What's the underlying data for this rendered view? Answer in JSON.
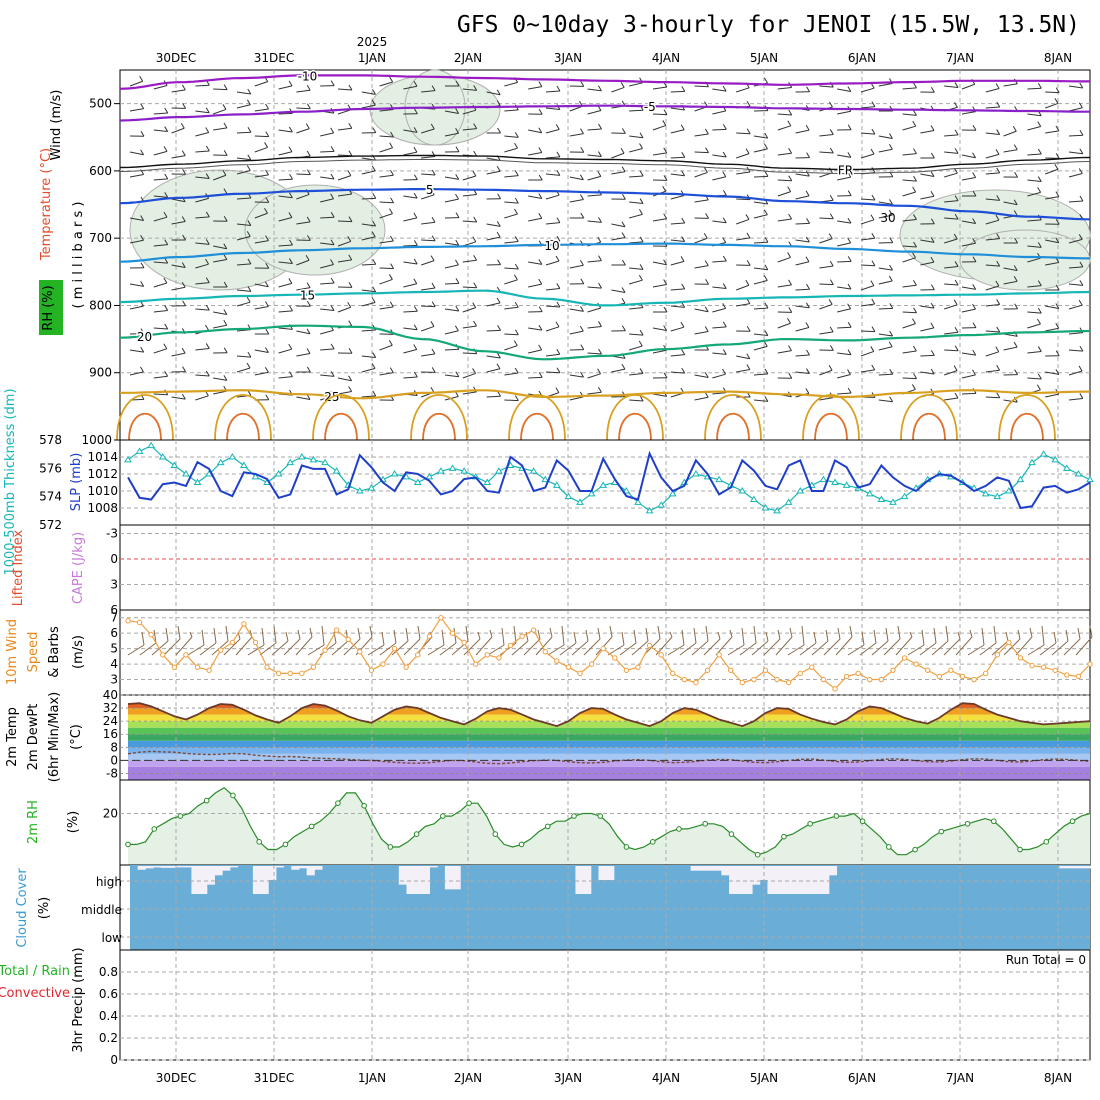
{
  "chart_data": {
    "type": "meteogram",
    "title": "GFS 0~10day 3-hourly for JENOI (15.5W, 13.5N)",
    "year_label": "2025",
    "dates": [
      "30DEC",
      "31DEC",
      "1JAN",
      "2JAN",
      "3JAN",
      "4JAN",
      "5JAN",
      "6JAN",
      "7JAN",
      "8JAN"
    ],
    "panels": [
      {
        "id": "upper_air",
        "labels": [
          "Wind (m/s)",
          "Temperature (°C)",
          "RH (%)",
          "( m i l l i b a r s )"
        ],
        "ylim": [
          1000,
          450
        ],
        "yticks": [
          500,
          600,
          700,
          800,
          900,
          1000
        ],
        "contour_labels": [
          "-10",
          "-5",
          "FR",
          "5",
          "10",
          "15",
          "20",
          "25",
          "30"
        ],
        "isotherms": [
          {
            "label": "-10",
            "color": "#9a1bc4",
            "pressures": [
              478,
              468,
              462,
              458,
              458,
              460,
              462,
              464,
              466,
              468,
              470,
              472,
              470,
              468,
              466,
              466,
              467
            ]
          },
          {
            "label": "-5",
            "color": "#8a20c8",
            "pressures": [
              525,
              520,
              516,
              512,
              508,
              506,
              505,
              504,
              503,
              504,
              505,
              507,
              508,
              509,
              510,
              511,
              512
            ]
          },
          {
            "label": "FR",
            "color": "#111111",
            "pressures": [
              595,
              590,
              585,
              580,
              578,
              577,
              578,
              582,
              583,
              585,
              590,
              596,
              598,
              596,
              590,
              584,
              580
            ]
          },
          {
            "label": "5",
            "color": "#1e4fd8",
            "pressures": [
              648,
              640,
              634,
              630,
              628,
              627,
              628,
              630,
              632,
              634,
              638,
              645,
              648,
              652,
              660,
              668,
              672
            ]
          },
          {
            "label": "10",
            "color": "#1e8fd8",
            "pressures": [
              735,
              728,
              722,
              718,
              715,
              713,
              712,
              710,
              709,
              708,
              710,
              712,
              716,
              720,
              724,
              728,
              730
            ]
          },
          {
            "label": "15",
            "color": "#17b6b6",
            "pressures": [
              795,
              790,
              786,
              784,
              782,
              780,
              778,
              790,
              800,
              796,
              790,
              788,
              786,
              785,
              784,
              782,
              780
            ]
          },
          {
            "label": "20",
            "color": "#14a878",
            "pressures": [
              848,
              840,
              835,
              830,
              832,
              850,
              868,
              880,
              875,
              865,
              858,
              850,
              852,
              848,
              844,
              840,
              838
            ]
          },
          {
            "label": "25",
            "color": "#d8a020",
            "pressures": [
              930,
              928,
              926,
              932,
              938,
              930,
              926,
              936,
              934,
              930,
              928,
              932,
              936,
              930,
              926,
              930,
              928
            ]
          }
        ]
      },
      {
        "id": "thickness_slp",
        "labels": [
          "1000-500mb Thickness (dm)",
          "SLP (mb)"
        ],
        "thickness_ylim": [
          572,
          578
        ],
        "thickness_ticks": [
          572,
          574,
          576,
          578
        ],
        "slp_ylim": [
          1006,
          1016
        ],
        "slp_ticks": [
          1008,
          1010,
          1012,
          1014
        ],
        "thickness": [
          576.6,
          577.2,
          577.6,
          576.8,
          576.2,
          575.6,
          575.0,
          575.6,
          576.4,
          576.8,
          576.2,
          575.4,
          575.0,
          575.6,
          576.4,
          576.8,
          576.6,
          576.4,
          575.8,
          574.8,
          574.4,
          574.6,
          575.2,
          575.6,
          575.4,
          575.0,
          575.4,
          575.8,
          576.0,
          575.8,
          575.4,
          575.0,
          575.8,
          576.2,
          576.0,
          575.8,
          575.2,
          574.8,
          574.0,
          573.6,
          574.2,
          574.8,
          575.0,
          574.4,
          573.6,
          573.0,
          573.4,
          574.2,
          575.0,
          575.6,
          575.4,
          575.2,
          574.8,
          574.4,
          573.8,
          573.2,
          573.0,
          573.6,
          574.4,
          574.8,
          575.2,
          575.0,
          574.8,
          574.6,
          574.2,
          573.8,
          573.6,
          574.0,
          574.6,
          575.2,
          575.6,
          575.4,
          575.0,
          574.6,
          574.2,
          574.0,
          574.4,
          575.2,
          576.4,
          577.0,
          576.6,
          576.0,
          575.6,
          575.2
        ],
        "slp": [
          1011.6,
          1009.2,
          1009.0,
          1010.8,
          1011.0,
          1010.6,
          1013.4,
          1012.6,
          1010.0,
          1009.4,
          1012.2,
          1012.0,
          1011.4,
          1009.2,
          1009.6,
          1013.0,
          1012.6,
          1012.6,
          1009.6,
          1010.2,
          1014.2,
          1012.8,
          1011.0,
          1010.0,
          1012.2,
          1012.0,
          1011.2,
          1009.6,
          1010.0,
          1011.4,
          1011.6,
          1010.0,
          1009.8,
          1014.0,
          1013.0,
          1010.0,
          1010.4,
          1013.6,
          1012.4,
          1010.0,
          1010.0,
          1013.8,
          1011.4,
          1009.4,
          1009.0,
          1014.4,
          1011.6,
          1010.0,
          1010.6,
          1013.6,
          1012.0,
          1009.6,
          1010.4,
          1013.6,
          1012.4,
          1010.6,
          1010.2,
          1013.0,
          1013.6,
          1010.0,
          1010.0,
          1013.6,
          1012.8,
          1010.4,
          1010.8,
          1013.0,
          1011.6,
          1010.6,
          1010.0,
          1011.2,
          1012.0,
          1011.8,
          1011.0,
          1010.0,
          1010.6,
          1011.6,
          1011.2,
          1008.0,
          1008.2,
          1010.4,
          1010.6,
          1009.8,
          1010.2,
          1011.0
        ]
      },
      {
        "id": "lifted_cape",
        "labels": [
          "Lifted Index",
          "CAPE (J/kg)"
        ],
        "ylim": [
          6,
          -4
        ],
        "yticks": [
          -3,
          0,
          3,
          6
        ]
      },
      {
        "id": "wind10m",
        "labels": [
          "10m Wind",
          "Speed",
          "& Barbs",
          "(m/s)"
        ],
        "ylim": [
          2,
          7.5
        ],
        "yticks": [
          3,
          4,
          5,
          6,
          7
        ],
        "speed": [
          6.8,
          6.7,
          5.9,
          4.6,
          3.8,
          4.6,
          3.8,
          3.6,
          4.9,
          5.4,
          6.6,
          5.4,
          3.8,
          3.4,
          3.4,
          3.4,
          3.8,
          4.9,
          6.2,
          5.6,
          4.8,
          3.6,
          4.0,
          5.0,
          3.8,
          4.6,
          5.8,
          7.0,
          6.0,
          5.4,
          4.0,
          4.6,
          4.4,
          5.2,
          5.8,
          6.2,
          4.8,
          4.2,
          3.8,
          3.4,
          4.0,
          5.0,
          4.4,
          3.6,
          3.8,
          5.2,
          4.6,
          3.4,
          3.0,
          2.8,
          3.6,
          4.6,
          3.6,
          2.8,
          3.0,
          3.6,
          3.0,
          2.8,
          3.4,
          3.8,
          3.0,
          2.4,
          3.2,
          3.4,
          3.0,
          3.0,
          3.6,
          4.4,
          4.0,
          3.6,
          3.2,
          3.6,
          3.2,
          3.0,
          3.4,
          4.6,
          5.4,
          4.4,
          3.9,
          3.8,
          3.6,
          3.3,
          3.2,
          4.0
        ]
      },
      {
        "id": "temperature",
        "labels": [
          "2m Temp",
          "2m DewPt",
          "(6hr Min/Max)",
          "(°C)"
        ],
        "ylim": [
          -12,
          40
        ],
        "yticks": [
          -8,
          0,
          8,
          16,
          24,
          32,
          40
        ],
        "temp": [
          34.5,
          35.0,
          33.0,
          30.0,
          27.0,
          25.0,
          28.0,
          32.0,
          34.5,
          34.0,
          31.0,
          27.5,
          25.0,
          23.0,
          27.0,
          32.0,
          34.5,
          33.5,
          30.5,
          27.0,
          24.5,
          23.0,
          27.0,
          31.0,
          33.0,
          32.0,
          29.0,
          26.0,
          24.0,
          22.0,
          25.5,
          30.0,
          32.0,
          31.0,
          28.0,
          25.0,
          23.0,
          21.0,
          24.0,
          29.0,
          32.0,
          31.5,
          28.0,
          25.0,
          23.0,
          21.0,
          24.0,
          29.0,
          32.0,
          31.0,
          28.0,
          25.0,
          23.0,
          21.0,
          24.0,
          29.0,
          32.0,
          31.5,
          28.0,
          25.5,
          23.5,
          22.0,
          25.0,
          30.0,
          33.0,
          32.0,
          29.0,
          26.0,
          24.0,
          22.5,
          26.0,
          31.0,
          35.0,
          34.5,
          31.0,
          28.0,
          26.0,
          24.0,
          23.0,
          22.0,
          22.5,
          23.0,
          23.5,
          24.0
        ],
        "dewpt": [
          4.0,
          5.0,
          5.5,
          5.2,
          5.0,
          4.2,
          3.8,
          3.6,
          3.8,
          4.2,
          4.0,
          3.2,
          2.6,
          2.2,
          2.4,
          2.0,
          1.4,
          1.2,
          1.0,
          0.6,
          0.2,
          0.0,
          -0.6,
          -1.2,
          -1.6,
          -1.8,
          -1.4,
          -0.6,
          0.0,
          -0.2,
          -1.0,
          -1.8,
          -2.0,
          -1.6,
          -0.8,
          -0.2,
          0.2,
          0.0,
          -0.8,
          -1.4,
          -1.6,
          -1.2,
          -0.4,
          0.2,
          0.4,
          0.0,
          -0.8,
          -1.4,
          -1.2,
          -0.6,
          0.2,
          0.6,
          0.4,
          -0.4,
          -1.2,
          -1.4,
          -0.8,
          0.0,
          0.6,
          0.8,
          0.2,
          -0.6,
          -1.2,
          -1.0,
          -0.2,
          0.6,
          1.0,
          0.6,
          -0.2,
          -0.8,
          -1.0,
          -0.4,
          0.4,
          1.0,
          0.8,
          0.0,
          -0.8,
          -1.0,
          -0.4,
          0.4,
          0.8,
          0.6,
          0.0,
          -0.6
        ]
      },
      {
        "id": "rh2m",
        "labels": [
          "2m RH",
          "(%)"
        ],
        "ylim": [
          0,
          33
        ],
        "yticks": [
          20
        ],
        "rh": [
          8,
          8,
          9,
          14,
          16,
          18,
          19,
          20,
          23,
          25,
          28,
          30,
          27,
          22,
          15,
          9,
          6,
          6,
          8,
          11,
          13,
          15,
          17,
          20,
          24,
          28,
          28,
          23,
          16,
          10,
          7,
          7,
          9,
          12,
          15,
          16,
          19,
          19,
          21,
          24,
          24,
          19,
          12,
          8,
          7,
          8,
          10,
          13,
          15,
          17,
          17,
          19,
          20,
          20,
          19,
          16,
          11,
          7,
          6,
          7,
          9,
          11,
          13,
          14,
          14,
          15,
          16,
          16,
          15,
          12,
          9,
          6,
          4,
          5,
          7,
          11,
          12,
          14,
          16,
          17,
          18,
          19,
          19,
          20,
          17,
          14,
          11,
          7,
          4,
          4,
          6,
          8,
          11,
          13,
          14,
          15,
          16,
          17,
          18,
          17,
          14,
          10,
          6,
          6,
          7,
          9,
          12,
          15,
          17,
          19,
          20
        ]
      },
      {
        "id": "cloud_cover",
        "labels": [
          "Cloud Cover",
          "(%)"
        ],
        "level_labels": [
          "high",
          "middle",
          "low"
        ],
        "high_cloud_gap": [
          0,
          8,
          5,
          3,
          4,
          4,
          3,
          3,
          60,
          60,
          40,
          20,
          10,
          3,
          0,
          0,
          60,
          60,
          30,
          3,
          0,
          8,
          5,
          20,
          8,
          0,
          0,
          0,
          0,
          0,
          0,
          0,
          0,
          0,
          0,
          40,
          60,
          60,
          60,
          3,
          0,
          50,
          50,
          0,
          0,
          0,
          0,
          0,
          0,
          0,
          0,
          0,
          0,
          0,
          0,
          0,
          0,
          0,
          60,
          60,
          0,
          30,
          30,
          0,
          0,
          0,
          0,
          0,
          0,
          0,
          0,
          0,
          0,
          10,
          10,
          10,
          10,
          20,
          60,
          60,
          60,
          40,
          30,
          60,
          60,
          60,
          60,
          60,
          60,
          60,
          60,
          20,
          0,
          0,
          0,
          0,
          0,
          0,
          0,
          0,
          0,
          0,
          0,
          0,
          0,
          0,
          0,
          0,
          0,
          0,
          0,
          0,
          0,
          0,
          0,
          0,
          0,
          0,
          0,
          0,
          0,
          5,
          5,
          5,
          5
        ]
      },
      {
        "id": "precip",
        "labels": [
          "Total / Rain",
          "Convective",
          "3hr Precip (mm)"
        ],
        "ylim": [
          0,
          1.0
        ],
        "yticks": [
          0,
          0.2,
          0.4,
          0.6,
          0.8
        ],
        "run_total_label": "Run Total = 0",
        "values": []
      }
    ]
  }
}
